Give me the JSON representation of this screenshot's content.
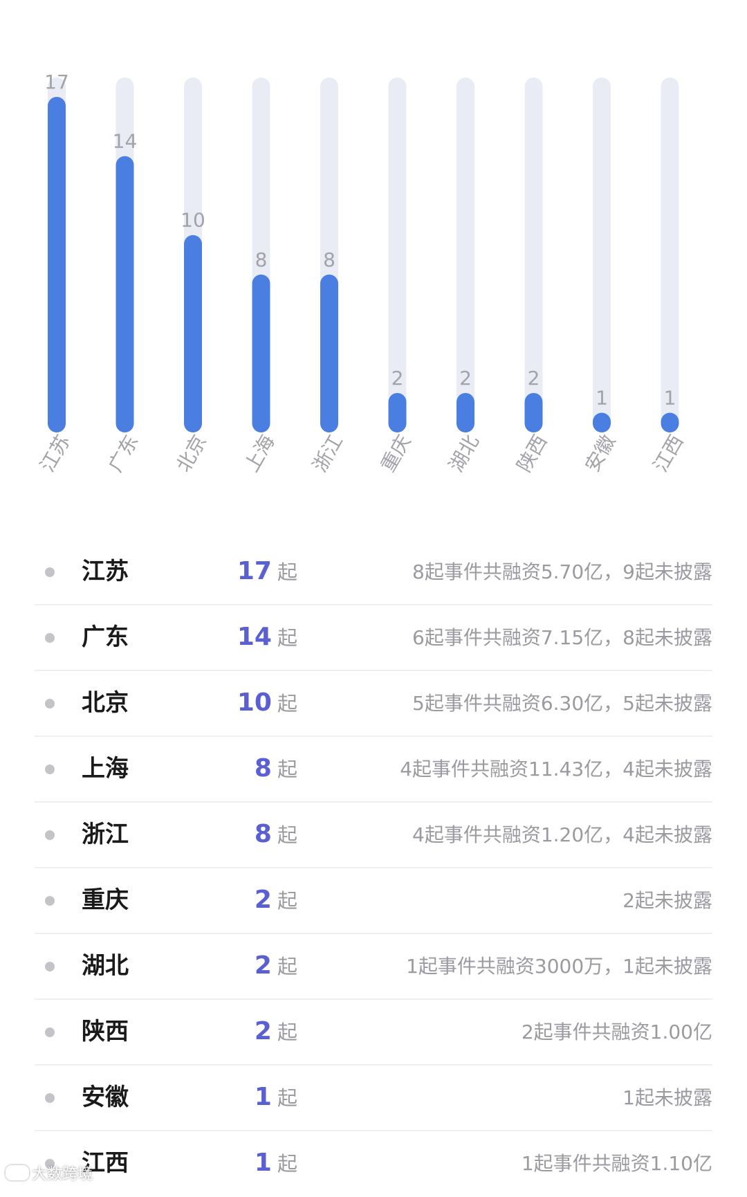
{
  "chart_data": {
    "type": "bar",
    "categories": [
      "江苏",
      "广东",
      "北京",
      "上海",
      "浙江",
      "重庆",
      "湖北",
      "陕西",
      "安徽",
      "江西"
    ],
    "values": [
      17,
      14,
      10,
      8,
      8,
      2,
      2,
      2,
      1,
      1
    ],
    "ylim": [
      0,
      17
    ],
    "grid": false,
    "colors": {
      "bar": "#4a7fe1",
      "track": "#e9ecf5",
      "value_label": "#a2a2a8",
      "category_label": "#a2a2a8"
    }
  },
  "list": {
    "unit": "起",
    "rows": [
      {
        "name": "江苏",
        "count": "17",
        "detail": "8起事件共融资5.70亿，9起未披露"
      },
      {
        "name": "广东",
        "count": "14",
        "detail": "6起事件共融资7.15亿，8起未披露"
      },
      {
        "name": "北京",
        "count": "10",
        "detail": "5起事件共融资6.30亿，5起未披露"
      },
      {
        "name": "上海",
        "count": "8",
        "detail": "4起事件共融资11.43亿，4起未披露"
      },
      {
        "name": "浙江",
        "count": "8",
        "detail": "4起事件共融资1.20亿，4起未披露"
      },
      {
        "name": "重庆",
        "count": "2",
        "detail": "2起未披露"
      },
      {
        "name": "湖北",
        "count": "2",
        "detail": "1起事件共融资3000万，1起未披露"
      },
      {
        "name": "陕西",
        "count": "2",
        "detail": "2起事件共融资1.00亿"
      },
      {
        "name": "安徽",
        "count": "1",
        "detail": "1起未披露"
      },
      {
        "name": "江西",
        "count": "1",
        "detail": "1起事件共融资1.10亿"
      }
    ]
  },
  "watermark": {
    "text": "大数跨境",
    "icon": "logo-icon"
  },
  "colors": {
    "accent": "#5a5fd1",
    "name_text": "#1a1a1a",
    "muted_text": "#9a9aa0",
    "divider": "#eeeff3",
    "dot": "#c4c4c8"
  }
}
